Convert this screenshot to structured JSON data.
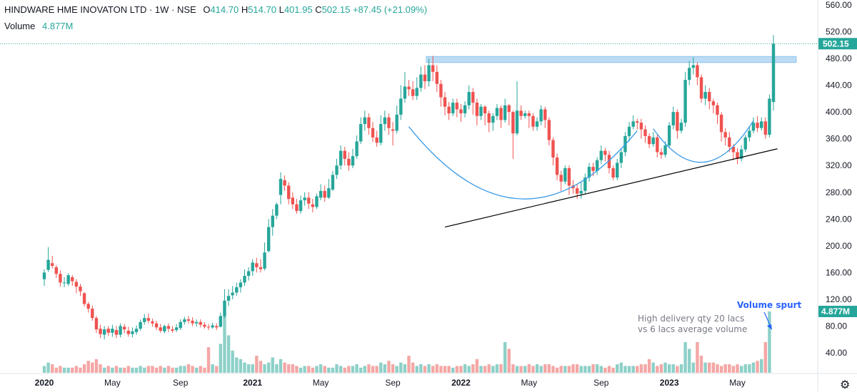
{
  "header": {
    "symbol_line": "HINDWARE HME INOVATON LTD · 1W · NSE",
    "open": "O414.70",
    "high": "H514.70",
    "low": "L401.95",
    "close": "C502.15",
    "change": "+87.45 (+21.09%)",
    "volume_label": "Volume",
    "volume_value": "4.877M"
  },
  "annotations": {
    "volume_spurt": "Volume spurt",
    "delivery_line1": "High delivery qty 20 lacs",
    "delivery_line2": "vs 6 lacs average volume"
  },
  "colors": {
    "up": "#26a69a",
    "down": "#ef5350",
    "up_volume": "#8dd0c8",
    "down_volume": "#f4a7a5",
    "curve": "#3a9be8",
    "resistance_zone": "#bcdcf6",
    "trendline": "#000000",
    "price_line": "#26a69a"
  },
  "chart_data": {
    "type": "candlestick",
    "interval": "1W",
    "y_ticks": [
      40,
      80,
      120,
      160,
      200,
      240,
      280,
      320,
      360,
      400,
      440,
      480,
      520,
      560
    ],
    "y_tick_labels": [
      "40.00",
      "80.00",
      "120.00",
      "160.00",
      "200.00",
      "240.00",
      "280.00",
      "320.00",
      "360.00",
      "400.00",
      "440.00",
      "480.00",
      "520.00",
      "560.00"
    ],
    "ylim": [
      22,
      575
    ],
    "x_labels": [
      "2020",
      "May",
      "Sep",
      "2021",
      "May",
      "Sep",
      "2022",
      "May",
      "Sep",
      "2023",
      "May"
    ],
    "x_label_weeks": [
      0,
      17,
      34,
      52,
      69,
      87,
      104,
      121,
      139,
      156,
      173
    ],
    "last_price_label": "502.15",
    "last_volume_label": "4.877M",
    "resistance_zone": [
      474,
      483
    ],
    "trendline": [
      {
        "week": 100,
        "price": 228
      },
      {
        "week": 183,
        "price": 345
      }
    ],
    "cup_curves": [
      {
        "from_week": 91,
        "to_week": 148,
        "left_price": 378,
        "bottom_price": 270,
        "right_price": 372
      },
      {
        "from_week": 152,
        "to_week": 177,
        "left_price": 375,
        "bottom_price": 325,
        "right_price": 387
      }
    ],
    "candles": [
      [
        150,
        160,
        140,
        165
      ],
      [
        164,
        179,
        161,
        198
      ],
      [
        174,
        170,
        166,
        185
      ],
      [
        168,
        158,
        152,
        171
      ],
      [
        158,
        145,
        139,
        163
      ],
      [
        145,
        145,
        138,
        153
      ],
      [
        143,
        156,
        140,
        159
      ],
      [
        153,
        147,
        140,
        156
      ],
      [
        146,
        139,
        129,
        150
      ],
      [
        139,
        132,
        125,
        143
      ],
      [
        129,
        113,
        109,
        131
      ],
      [
        113,
        106,
        100,
        116
      ],
      [
        106,
        92,
        88,
        111
      ],
      [
        92,
        75,
        70,
        95
      ],
      [
        76,
        68,
        62,
        82
      ],
      [
        67,
        75,
        60,
        80
      ],
      [
        76,
        70,
        65,
        80
      ],
      [
        70,
        76,
        64,
        82
      ],
      [
        74,
        67,
        62,
        80
      ],
      [
        67,
        80,
        63,
        84
      ],
      [
        79,
        75,
        69,
        83
      ],
      [
        73,
        68,
        64,
        79
      ],
      [
        68,
        72,
        63,
        78
      ],
      [
        71,
        76,
        67,
        81
      ],
      [
        76,
        86,
        73,
        90
      ],
      [
        86,
        92,
        82,
        98
      ],
      [
        92,
        88,
        84,
        99
      ],
      [
        87,
        84,
        79,
        91
      ],
      [
        84,
        78,
        74,
        88
      ],
      [
        78,
        73,
        70,
        83
      ],
      [
        72,
        80,
        69,
        82
      ],
      [
        80,
        76,
        71,
        84
      ],
      [
        75,
        73,
        70,
        80
      ],
      [
        74,
        78,
        71,
        83
      ],
      [
        77,
        86,
        74,
        90
      ],
      [
        86,
        90,
        82,
        94
      ],
      [
        90,
        88,
        84,
        95
      ],
      [
        88,
        84,
        80,
        93
      ],
      [
        84,
        86,
        79,
        90
      ],
      [
        86,
        82,
        78,
        90
      ],
      [
        82,
        79,
        76,
        86
      ],
      [
        79,
        78,
        74,
        83
      ],
      [
        78,
        81,
        76,
        85
      ],
      [
        80,
        78,
        74,
        84
      ],
      [
        79,
        95,
        78,
        100
      ],
      [
        95,
        118,
        92,
        135
      ],
      [
        118,
        125,
        110,
        135
      ],
      [
        126,
        130,
        120,
        140
      ],
      [
        130,
        138,
        125,
        145
      ],
      [
        138,
        145,
        130,
        150
      ],
      [
        145,
        155,
        140,
        165
      ],
      [
        155,
        162,
        148,
        168
      ],
      [
        162,
        175,
        155,
        180
      ],
      [
        174,
        168,
        160,
        182
      ],
      [
        168,
        165,
        160,
        180
      ],
      [
        166,
        190,
        163,
        205
      ],
      [
        192,
        228,
        190,
        240
      ],
      [
        228,
        245,
        215,
        255
      ],
      [
        245,
        262,
        240,
        265
      ],
      [
        276,
        300,
        262,
        310
      ],
      [
        298,
        290,
        282,
        305
      ],
      [
        290,
        270,
        262,
        295
      ],
      [
        272,
        262,
        255,
        280
      ],
      [
        262,
        252,
        248,
        270
      ],
      [
        252,
        268,
        248,
        275
      ],
      [
        268,
        272,
        260,
        280
      ],
      [
        272,
        263,
        255,
        280
      ],
      [
        262,
        258,
        250,
        270
      ],
      [
        258,
        274,
        255,
        278
      ],
      [
        272,
        282,
        268,
        292
      ],
      [
        282,
        272,
        266,
        290
      ],
      [
        272,
        286,
        270,
        300
      ],
      [
        284,
        306,
        282,
        312
      ],
      [
        306,
        320,
        300,
        330
      ],
      [
        320,
        342,
        314,
        350
      ],
      [
        342,
        330,
        320,
        348
      ],
      [
        330,
        320,
        312,
        340
      ],
      [
        320,
        334,
        316,
        345
      ],
      [
        334,
        356,
        330,
        365
      ],
      [
        356,
        382,
        352,
        392
      ],
      [
        382,
        392,
        372,
        402
      ],
      [
        392,
        376,
        366,
        398
      ],
      [
        376,
        362,
        355,
        385
      ],
      [
        362,
        354,
        348,
        372
      ],
      [
        354,
        382,
        350,
        395
      ],
      [
        382,
        392,
        372,
        402
      ],
      [
        392,
        376,
        366,
        398
      ],
      [
        374,
        372,
        350,
        385
      ],
      [
        372,
        396,
        368,
        410
      ],
      [
        396,
        420,
        388,
        440
      ],
      [
        420,
        438,
        414,
        460
      ],
      [
        438,
        434,
        424,
        448
      ],
      [
        434,
        424,
        418,
        446
      ],
      [
        424,
        436,
        418,
        452
      ],
      [
        436,
        456,
        430,
        468
      ],
      [
        456,
        446,
        434,
        470
      ],
      [
        446,
        470,
        438,
        480
      ],
      [
        470,
        460,
        446,
        484
      ],
      [
        460,
        442,
        430,
        470
      ],
      [
        442,
        422,
        408,
        448
      ],
      [
        422,
        408,
        395,
        430
      ],
      [
        408,
        398,
        388,
        415
      ],
      [
        398,
        414,
        394,
        420
      ],
      [
        414,
        404,
        392,
        420
      ],
      [
        404,
        398,
        385,
        412
      ],
      [
        398,
        410,
        392,
        416
      ],
      [
        410,
        430,
        404,
        440
      ],
      [
        430,
        414,
        396,
        436
      ],
      [
        414,
        394,
        380,
        420
      ],
      [
        394,
        408,
        388,
        412
      ],
      [
        408,
        398,
        380,
        410
      ],
      [
        398,
        384,
        370,
        402
      ],
      [
        384,
        394,
        372,
        398
      ],
      [
        394,
        406,
        388,
        412
      ],
      [
        406,
        388,
        376,
        410
      ],
      [
        388,
        410,
        384,
        420
      ],
      [
        410,
        400,
        380,
        412
      ],
      [
        400,
        368,
        330,
        402
      ],
      [
        368,
        402,
        365,
        446
      ],
      [
        402,
        394,
        388,
        410
      ],
      [
        394,
        398,
        390,
        402
      ],
      [
        398,
        394,
        376,
        402
      ],
      [
        394,
        378,
        372,
        398
      ],
      [
        378,
        386,
        372,
        392
      ],
      [
        386,
        404,
        380,
        410
      ],
      [
        404,
        388,
        376,
        408
      ],
      [
        388,
        358,
        350,
        392
      ],
      [
        358,
        332,
        320,
        362
      ],
      [
        332,
        306,
        298,
        338
      ],
      [
        306,
        296,
        282,
        312
      ],
      [
        296,
        316,
        292,
        320
      ],
      [
        316,
        290,
        276,
        320
      ],
      [
        290,
        286,
        278,
        298
      ],
      [
        286,
        278,
        270,
        292
      ],
      [
        278,
        282,
        270,
        296
      ],
      [
        282,
        302,
        278,
        308
      ],
      [
        302,
        318,
        296,
        324
      ],
      [
        318,
        312,
        304,
        324
      ],
      [
        312,
        328,
        306,
        332
      ],
      [
        328,
        342,
        322,
        350
      ],
      [
        342,
        336,
        326,
        346
      ],
      [
        336,
        316,
        308,
        342
      ],
      [
        316,
        302,
        298,
        320
      ],
      [
        302,
        324,
        298,
        330
      ],
      [
        324,
        340,
        316,
        346
      ],
      [
        340,
        364,
        334,
        370
      ],
      [
        364,
        378,
        356,
        385
      ],
      [
        378,
        386,
        374,
        395
      ],
      [
        386,
        384,
        374,
        390
      ],
      [
        384,
        374,
        360,
        390
      ],
      [
        374,
        364,
        354,
        380
      ],
      [
        364,
        352,
        346,
        368
      ],
      [
        352,
        362,
        348,
        370
      ],
      [
        362,
        340,
        332,
        366
      ],
      [
        340,
        336,
        330,
        346
      ],
      [
        336,
        350,
        332,
        356
      ],
      [
        350,
        380,
        346,
        385
      ],
      [
        380,
        400,
        374,
        408
      ],
      [
        400,
        372,
        360,
        404
      ],
      [
        372,
        384,
        368,
        390
      ],
      [
        384,
        448,
        378,
        460
      ],
      [
        448,
        466,
        440,
        476
      ],
      [
        466,
        470,
        456,
        482
      ],
      [
        470,
        452,
        440,
        474
      ],
      [
        452,
        420,
        414,
        456
      ],
      [
        420,
        430,
        410,
        440
      ],
      [
        430,
        416,
        404,
        436
      ],
      [
        416,
        410,
        398,
        420
      ],
      [
        410,
        396,
        382,
        414
      ],
      [
        396,
        370,
        356,
        400
      ],
      [
        370,
        362,
        350,
        376
      ],
      [
        362,
        348,
        340,
        370
      ],
      [
        348,
        340,
        328,
        352
      ],
      [
        340,
        330,
        322,
        346
      ],
      [
        330,
        344,
        326,
        350
      ],
      [
        344,
        362,
        340,
        366
      ],
      [
        362,
        372,
        356,
        378
      ],
      [
        372,
        384,
        368,
        392
      ],
      [
        384,
        376,
        370,
        394
      ],
      [
        376,
        386,
        372,
        392
      ],
      [
        386,
        366,
        360,
        392
      ],
      [
        366,
        420,
        362,
        426
      ],
      [
        415,
        502,
        402,
        515
      ]
    ],
    "volume_ticks_note": "",
    "volumes": [
      4,
      6,
      5,
      3,
      4,
      3,
      3,
      3,
      4,
      3,
      5,
      7,
      6,
      8,
      5,
      3,
      4,
      3,
      4,
      3,
      3,
      4,
      3,
      3,
      4,
      3,
      4,
      4,
      3,
      4,
      3,
      4,
      3,
      3,
      4,
      4,
      5,
      4,
      3,
      4,
      3,
      15,
      5,
      4,
      17,
      34,
      22,
      13,
      9,
      8,
      6,
      5,
      5,
      10,
      7,
      5,
      6,
      9,
      5,
      8,
      6,
      5,
      5,
      4,
      3,
      4,
      4,
      3,
      4,
      5,
      4,
      3,
      3,
      5,
      4,
      3,
      4,
      4,
      5,
      3,
      4,
      5,
      4,
      4,
      6,
      5,
      7,
      5,
      4,
      6,
      5,
      10,
      6,
      4,
      5,
      4,
      5,
      4,
      5,
      4,
      4,
      4,
      3,
      4,
      4,
      5,
      4,
      5,
      8,
      4,
      4,
      5,
      4,
      5,
      5,
      18,
      14,
      5,
      4,
      4,
      4,
      5,
      4,
      5,
      4,
      5,
      5,
      4,
      3,
      4,
      4,
      4,
      5,
      5,
      4,
      4,
      4,
      5,
      5,
      4,
      3,
      4,
      3,
      5,
      6,
      4,
      4,
      4,
      4,
      5,
      5,
      8,
      6,
      4,
      5,
      6,
      5,
      5,
      4,
      5,
      18,
      14,
      6,
      18,
      10,
      6,
      6,
      6,
      5,
      4,
      5,
      5,
      4,
      5,
      4,
      5,
      5,
      6,
      7,
      8,
      18,
      36
    ]
  }
}
